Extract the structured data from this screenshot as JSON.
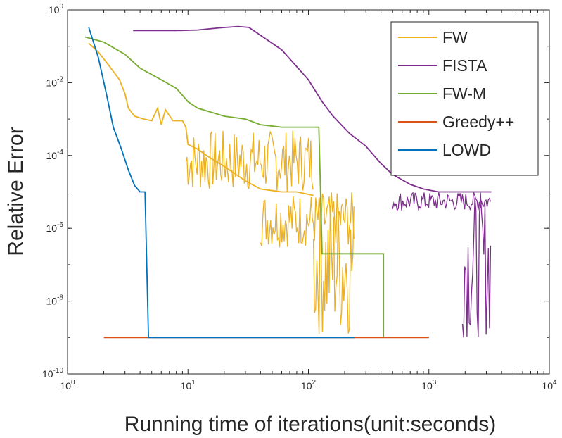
{
  "chart_data": {
    "type": "line",
    "xscale": "log",
    "yscale": "log",
    "xlabel": "Running time of iterations(unit:seconds)",
    "ylabel": "Relative Error",
    "xlim": [
      1,
      10000
    ],
    "ylim": [
      1e-10,
      1
    ],
    "xticks": [
      {
        "base": "10",
        "exp": "0",
        "value": 1
      },
      {
        "base": "10",
        "exp": "1",
        "value": 10
      },
      {
        "base": "10",
        "exp": "2",
        "value": 100
      },
      {
        "base": "10",
        "exp": "3",
        "value": 1000
      },
      {
        "base": "10",
        "exp": "4",
        "value": 10000
      }
    ],
    "yticks": [
      {
        "base": "10",
        "exp": "0",
        "value": 1
      },
      {
        "base": "10",
        "exp": "-2",
        "value": 0.01
      },
      {
        "base": "10",
        "exp": "-4",
        "value": 0.0001
      },
      {
        "base": "10",
        "exp": "-6",
        "value": 1e-06
      },
      {
        "base": "10",
        "exp": "-8",
        "value": 1e-08
      },
      {
        "base": "10",
        "exp": "-10",
        "value": 1e-10
      }
    ],
    "legend_position": "top-right",
    "series": [
      {
        "name": "FW",
        "color": "#EDB120",
        "points": [
          [
            1.5,
            0.12
          ],
          [
            1.8,
            0.07
          ],
          [
            2.2,
            0.03
          ],
          [
            2.7,
            0.012
          ],
          [
            3.0,
            0.005
          ],
          [
            3.2,
            0.002
          ],
          [
            3.6,
            0.0012
          ],
          [
            4.3,
            0.001
          ],
          [
            5.0,
            0.0009
          ],
          [
            5.6,
            0.002
          ],
          [
            6.0,
            0.0007
          ],
          [
            6.5,
            0.0018
          ],
          [
            7.5,
            0.0009
          ],
          [
            9.0,
            0.0009
          ],
          [
            9.6,
            0.0006
          ],
          [
            10.0,
            0.0002
          ],
          [
            12.0,
            0.00015
          ],
          [
            15.0,
            9e-05
          ],
          [
            20.0,
            5e-05
          ],
          [
            30.0,
            2e-05
          ],
          [
            40.0,
            1.2e-05
          ],
          [
            60.0,
            1e-05
          ],
          [
            80.0,
            1e-05
          ],
          [
            110.0,
            8e-06
          ]
        ],
        "noise_bands": [
          {
            "from": 9.6,
            "to": 110,
            "low": 1e-05,
            "high": 0.0005
          },
          {
            "from": 40,
            "to": 240,
            "low": 3e-07,
            "high": 1e-05
          },
          {
            "from": 110,
            "to": 240,
            "low": 1e-09,
            "high": 1e-05
          }
        ]
      },
      {
        "name": "FISTA",
        "color": "#7E2F8E",
        "points": [
          [
            3.5,
            0.27
          ],
          [
            8.0,
            0.27
          ],
          [
            12.0,
            0.28
          ],
          [
            18.0,
            0.32
          ],
          [
            26.0,
            0.35
          ],
          [
            32.0,
            0.33
          ],
          [
            40.0,
            0.2
          ],
          [
            60.0,
            0.08
          ],
          [
            100.0,
            0.012
          ],
          [
            130.0,
            0.003
          ],
          [
            160.0,
            0.0012
          ],
          [
            220.0,
            0.0004
          ],
          [
            300.0,
            0.00018
          ],
          [
            400.0,
            6e-05
          ],
          [
            500.0,
            3e-05
          ],
          [
            700.0,
            1.6e-05
          ],
          [
            900.0,
            1.2e-05
          ],
          [
            1200.0,
            1e-05
          ],
          [
            1800.0,
            1e-05
          ],
          [
            3300.0,
            1e-05
          ]
        ],
        "noise_bands": [
          {
            "from": 500,
            "to": 3300,
            "low": 3e-06,
            "high": 1e-05
          },
          {
            "from": 1900,
            "to": 3300,
            "low": 1e-09,
            "high": 1e-05
          }
        ]
      },
      {
        "name": "FW-M",
        "color": "#77AC30",
        "points": [
          [
            1.4,
            0.18
          ],
          [
            2.0,
            0.13
          ],
          [
            3.0,
            0.06
          ],
          [
            4.0,
            0.025
          ],
          [
            6.0,
            0.012
          ],
          [
            8.0,
            0.007
          ],
          [
            10.0,
            0.003
          ],
          [
            12.0,
            0.002
          ],
          [
            20.0,
            0.0012
          ],
          [
            30.0,
            0.001
          ],
          [
            40.0,
            0.0007
          ],
          [
            60.0,
            0.0006
          ],
          [
            122.0,
            0.0006
          ],
          [
            130.0,
            2e-07
          ],
          [
            420.0,
            2e-07
          ],
          [
            420.0,
            1e-09
          ]
        ]
      },
      {
        "name": "Greedy++",
        "color": "#D95319",
        "points": [
          [
            2.0,
            1e-09
          ],
          [
            1000.0,
            1e-09
          ]
        ]
      },
      {
        "name": "LOWD",
        "color": "#0072BD",
        "points": [
          [
            1.5,
            0.33
          ],
          [
            1.8,
            0.05
          ],
          [
            2.1,
            0.005
          ],
          [
            2.4,
            0.0006
          ],
          [
            2.8,
            0.00015
          ],
          [
            3.2,
            4e-05
          ],
          [
            3.6,
            1.5e-05
          ],
          [
            4.0,
            1e-05
          ],
          [
            4.4,
            1e-05
          ],
          [
            4.7,
            1e-09
          ],
          [
            240.0,
            1e-09
          ]
        ]
      }
    ]
  }
}
